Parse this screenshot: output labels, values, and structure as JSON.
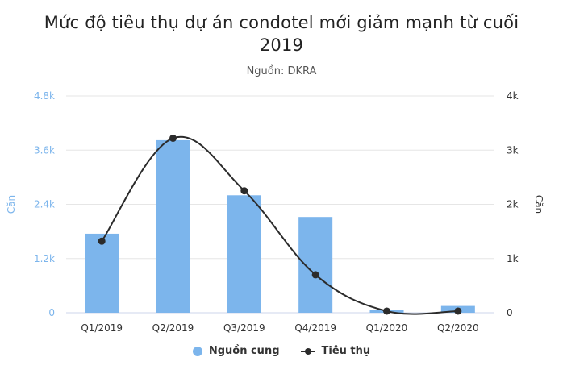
{
  "chart_data": {
    "type": "bar",
    "title_lines": [
      "Mức độ tiêu thụ dự án condotel mới giảm mạnh từ cuối",
      "2019"
    ],
    "subtitle": "Nguồn: DKRA",
    "categories": [
      "Q1/2019",
      "Q2/2019",
      "Q3/2019",
      "Q4/2019",
      "Q1/2020",
      "Q2/2020"
    ],
    "series": [
      {
        "name": "Nguồn cung",
        "type": "bar",
        "axis": "left",
        "color": "#7cb5ec",
        "values": [
          1750,
          3820,
          2600,
          2120,
          60,
          150
        ]
      },
      {
        "name": "Tiêu thụ",
        "type": "line",
        "axis": "right",
        "color": "#2b2b2b",
        "values": [
          1320,
          3220,
          2250,
          700,
          30,
          30
        ]
      }
    ],
    "y_left": {
      "label": "Căn",
      "ylim": [
        0,
        4800
      ],
      "ticks": [
        0,
        1200,
        2400,
        3600,
        4800
      ],
      "tick_labels": [
        "0",
        "1.2k",
        "2.4k",
        "3.6k",
        "4.8k"
      ],
      "color": "#7cb5ec"
    },
    "y_right": {
      "label": "Căn",
      "ylim": [
        0,
        4000
      ],
      "ticks": [
        0,
        1000,
        2000,
        3000,
        4000
      ],
      "tick_labels": [
        "0",
        "1k",
        "2k",
        "3k",
        "4k"
      ],
      "color": "#333333"
    },
    "grid": true,
    "legend_position": "bottom-center"
  }
}
